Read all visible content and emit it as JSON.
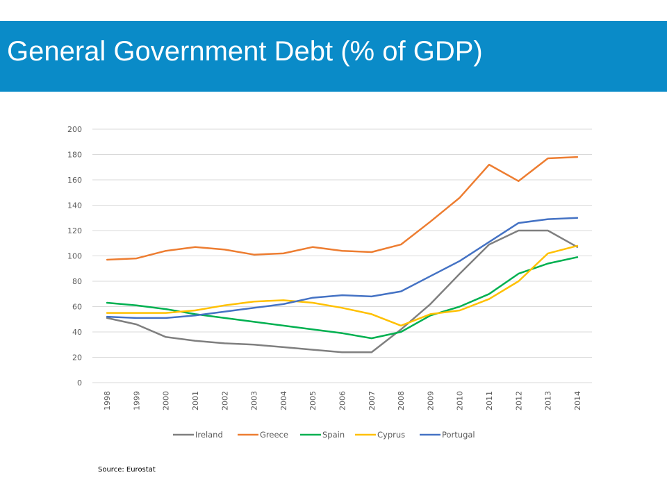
{
  "slide": {
    "title": "General Government Debt (% of GDP)",
    "source": "Source: Eurostat"
  },
  "colors": {
    "title_bar": "#0a8bc8",
    "gridline": "#d9d9d9",
    "axis_text": "#595959"
  },
  "chart_data": {
    "type": "line",
    "title": "",
    "xlabel": "",
    "ylabel": "",
    "ylim": [
      0,
      200
    ],
    "yticks": [
      0,
      20,
      40,
      60,
      80,
      100,
      120,
      140,
      160,
      180,
      200
    ],
    "grid": true,
    "legend_position": "bottom",
    "x": [
      "1998",
      "1999",
      "2000",
      "2001",
      "2002",
      "2003",
      "2004",
      "2005",
      "2006",
      "2007",
      "2008",
      "2009",
      "2010",
      "2011",
      "2012",
      "2013",
      "2014"
    ],
    "series": [
      {
        "name": "Ireland",
        "color": "#7f7f7f",
        "values": [
          51,
          46,
          36,
          33,
          31,
          30,
          28,
          26,
          24,
          24,
          42,
          62,
          86,
          109,
          120,
          120,
          107
        ]
      },
      {
        "name": "Greece",
        "color": "#ed7d31",
        "values": [
          97,
          98,
          104,
          107,
          105,
          101,
          102,
          107,
          104,
          103,
          109,
          127,
          146,
          172,
          159,
          177,
          178
        ]
      },
      {
        "name": "Spain",
        "color": "#00b050",
        "values": [
          63,
          61,
          58,
          54,
          51,
          48,
          45,
          42,
          39,
          35,
          40,
          53,
          60,
          70,
          86,
          94,
          99
        ]
      },
      {
        "name": "Cyprus",
        "color": "#ffc000",
        "values": [
          55,
          55,
          55,
          57,
          61,
          64,
          65,
          63,
          59,
          54,
          45,
          54,
          57,
          66,
          80,
          102,
          108
        ]
      },
      {
        "name": "Portugal",
        "color": "#4472c4",
        "values": [
          52,
          51,
          51,
          53,
          56,
          59,
          62,
          67,
          69,
          68,
          72,
          84,
          96,
          111,
          126,
          129,
          130
        ]
      }
    ]
  }
}
